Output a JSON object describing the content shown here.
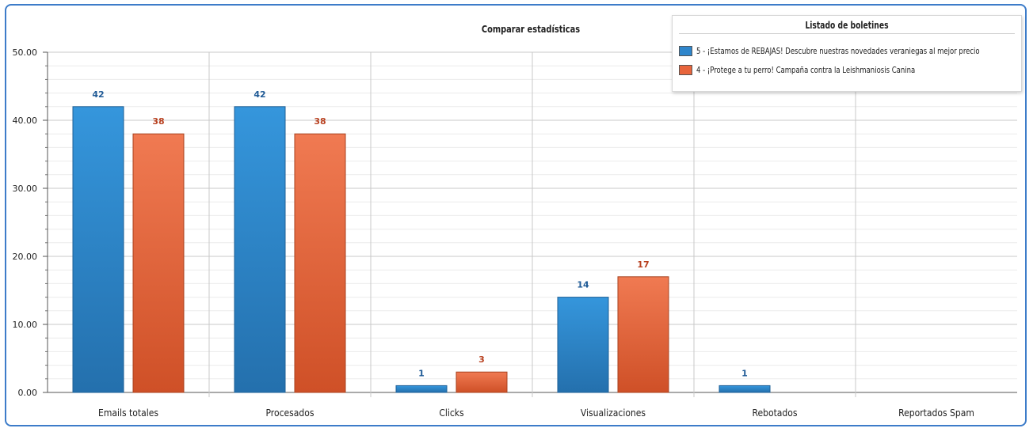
{
  "chart_data": {
    "type": "bar",
    "title": "Comparar estadísticas",
    "categories": [
      "Emails totales",
      "Procesados",
      "Clicks",
      "Visualizaciones",
      "Rebotados",
      "Reportados Spam"
    ],
    "series": [
      {
        "name": "5 - ¡Estamos de REBAJAS! Descubre nuestras novedades veraniegas al mejor precio",
        "values": [
          42,
          42,
          1,
          14,
          1,
          0
        ],
        "color": "#2f86cc",
        "label_color": "#1f5a96"
      },
      {
        "name": "4 - ¡Protege a tu perro! Campaña contra la Leishmaniosis Canina",
        "values": [
          38,
          38,
          3,
          17,
          0,
          0
        ],
        "color": "#e8653c",
        "label_color": "#b8401f"
      }
    ],
    "y_ticks": [
      "0.00",
      "10.00",
      "20.00",
      "30.00",
      "40.00",
      "50.00"
    ],
    "ylim": [
      0,
      50
    ],
    "grid": true,
    "legend_title": "Listado de boletines",
    "legend_position": "top-right"
  }
}
